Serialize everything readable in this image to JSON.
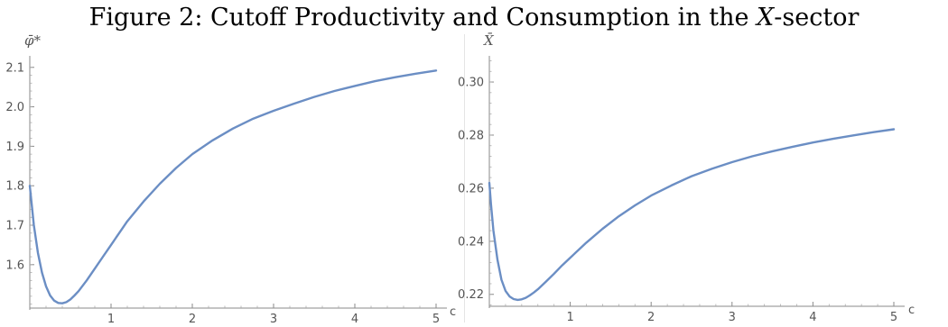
{
  "figure": {
    "title_prefix": "Figure 2: Cutoff Productivity and Consumption in the ",
    "title_var": "X",
    "title_suffix": "-sector"
  },
  "chart_data": [
    {
      "type": "line",
      "xlabel": "c",
      "ylabel": "φ̄*",
      "xlim": [
        0,
        5.15
      ],
      "ylim": [
        1.49,
        2.12
      ],
      "xticks": [
        1,
        2,
        3,
        4,
        5
      ],
      "yticks": [
        1.6,
        1.7,
        1.8,
        1.9,
        2.0,
        2.1
      ],
      "grid": false,
      "color": "#6b8ec4",
      "series": [
        {
          "x": [
            0.0,
            0.02,
            0.05,
            0.1,
            0.15,
            0.2,
            0.25,
            0.3,
            0.35,
            0.4,
            0.45,
            0.5,
            0.55,
            0.6,
            0.7,
            0.8,
            0.9,
            1.0,
            1.2,
            1.4,
            1.6,
            1.8,
            2.0,
            2.25,
            2.5,
            2.75,
            3.0,
            3.25,
            3.5,
            3.75,
            4.0,
            4.25,
            4.5,
            4.75,
            5.0
          ],
          "y": [
            1.8,
            1.76,
            1.7,
            1.63,
            1.58,
            1.545,
            1.522,
            1.509,
            1.503,
            1.502,
            1.505,
            1.512,
            1.522,
            1.533,
            1.56,
            1.59,
            1.62,
            1.65,
            1.71,
            1.76,
            1.805,
            1.845,
            1.88,
            1.915,
            1.945,
            1.97,
            1.99,
            2.008,
            2.025,
            2.04,
            2.053,
            2.065,
            2.075,
            2.084,
            2.092
          ]
        }
      ]
    },
    {
      "type": "line",
      "xlabel": "c",
      "ylabel": "X̄",
      "xlim": [
        0,
        5.15
      ],
      "ylim": [
        0.2155,
        0.3085
      ],
      "xticks": [
        1,
        2,
        3,
        4,
        5
      ],
      "yticks": [
        0.22,
        0.24,
        0.26,
        0.28,
        0.3
      ],
      "grid": false,
      "color": "#6b8ec4",
      "series": [
        {
          "x": [
            0.0,
            0.02,
            0.05,
            0.1,
            0.15,
            0.2,
            0.25,
            0.3,
            0.35,
            0.4,
            0.45,
            0.5,
            0.55,
            0.6,
            0.7,
            0.8,
            0.9,
            1.0,
            1.2,
            1.4,
            1.6,
            1.8,
            2.0,
            2.25,
            2.5,
            2.75,
            3.0,
            3.25,
            3.5,
            3.75,
            4.0,
            4.25,
            4.5,
            4.75,
            5.0
          ],
          "y": [
            0.262,
            0.254,
            0.244,
            0.233,
            0.2255,
            0.2213,
            0.2192,
            0.2182,
            0.2179,
            0.2181,
            0.2187,
            0.2196,
            0.2207,
            0.2219,
            0.2248,
            0.2278,
            0.2309,
            0.2338,
            0.2395,
            0.2447,
            0.2494,
            0.2535,
            0.2572,
            0.261,
            0.2645,
            0.2673,
            0.2698,
            0.272,
            0.2739,
            0.2756,
            0.2772,
            0.2786,
            0.2799,
            0.2811,
            0.2822
          ]
        }
      ]
    }
  ]
}
